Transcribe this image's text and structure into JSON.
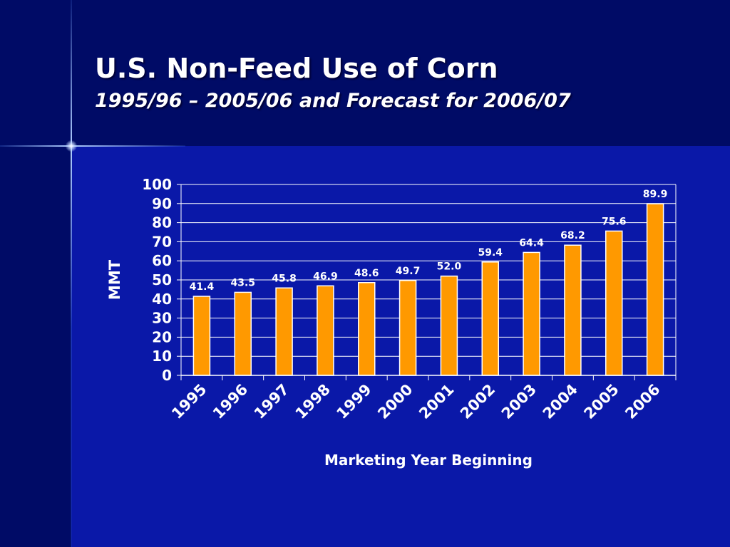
{
  "slide": {
    "title": "U.S. Non-Feed Use of Corn",
    "subtitle": "1995/96 – 2005/06 and Forecast for 2006/07"
  },
  "colors": {
    "background": "#00117a",
    "content_area": "#0a18a8",
    "bar_fill": "#ff9900",
    "bar_outline": "#ffffff",
    "text": "#ffffff"
  },
  "chart_data": {
    "type": "bar",
    "title": "",
    "xlabel": "Marketing Year Beginning",
    "ylabel": "MMT",
    "categories": [
      "1995",
      "1996",
      "1997",
      "1998",
      "1999",
      "2000",
      "2001",
      "2002",
      "2003",
      "2004",
      "2005",
      "2006"
    ],
    "values": [
      41.4,
      43.5,
      45.8,
      46.9,
      48.6,
      49.7,
      52.0,
      59.4,
      64.4,
      68.2,
      75.6,
      89.9
    ],
    "data_labels": [
      "41.4",
      "43.5",
      "45.8",
      "46.9",
      "48.6",
      "49.7",
      "52.0",
      "59.4",
      "64.4",
      "68.2",
      "75.6",
      "89.9"
    ],
    "ylim": [
      0,
      100
    ],
    "yticks": [
      0,
      10,
      20,
      30,
      40,
      50,
      60,
      70,
      80,
      90,
      100
    ],
    "grid": true,
    "legend": "none"
  }
}
